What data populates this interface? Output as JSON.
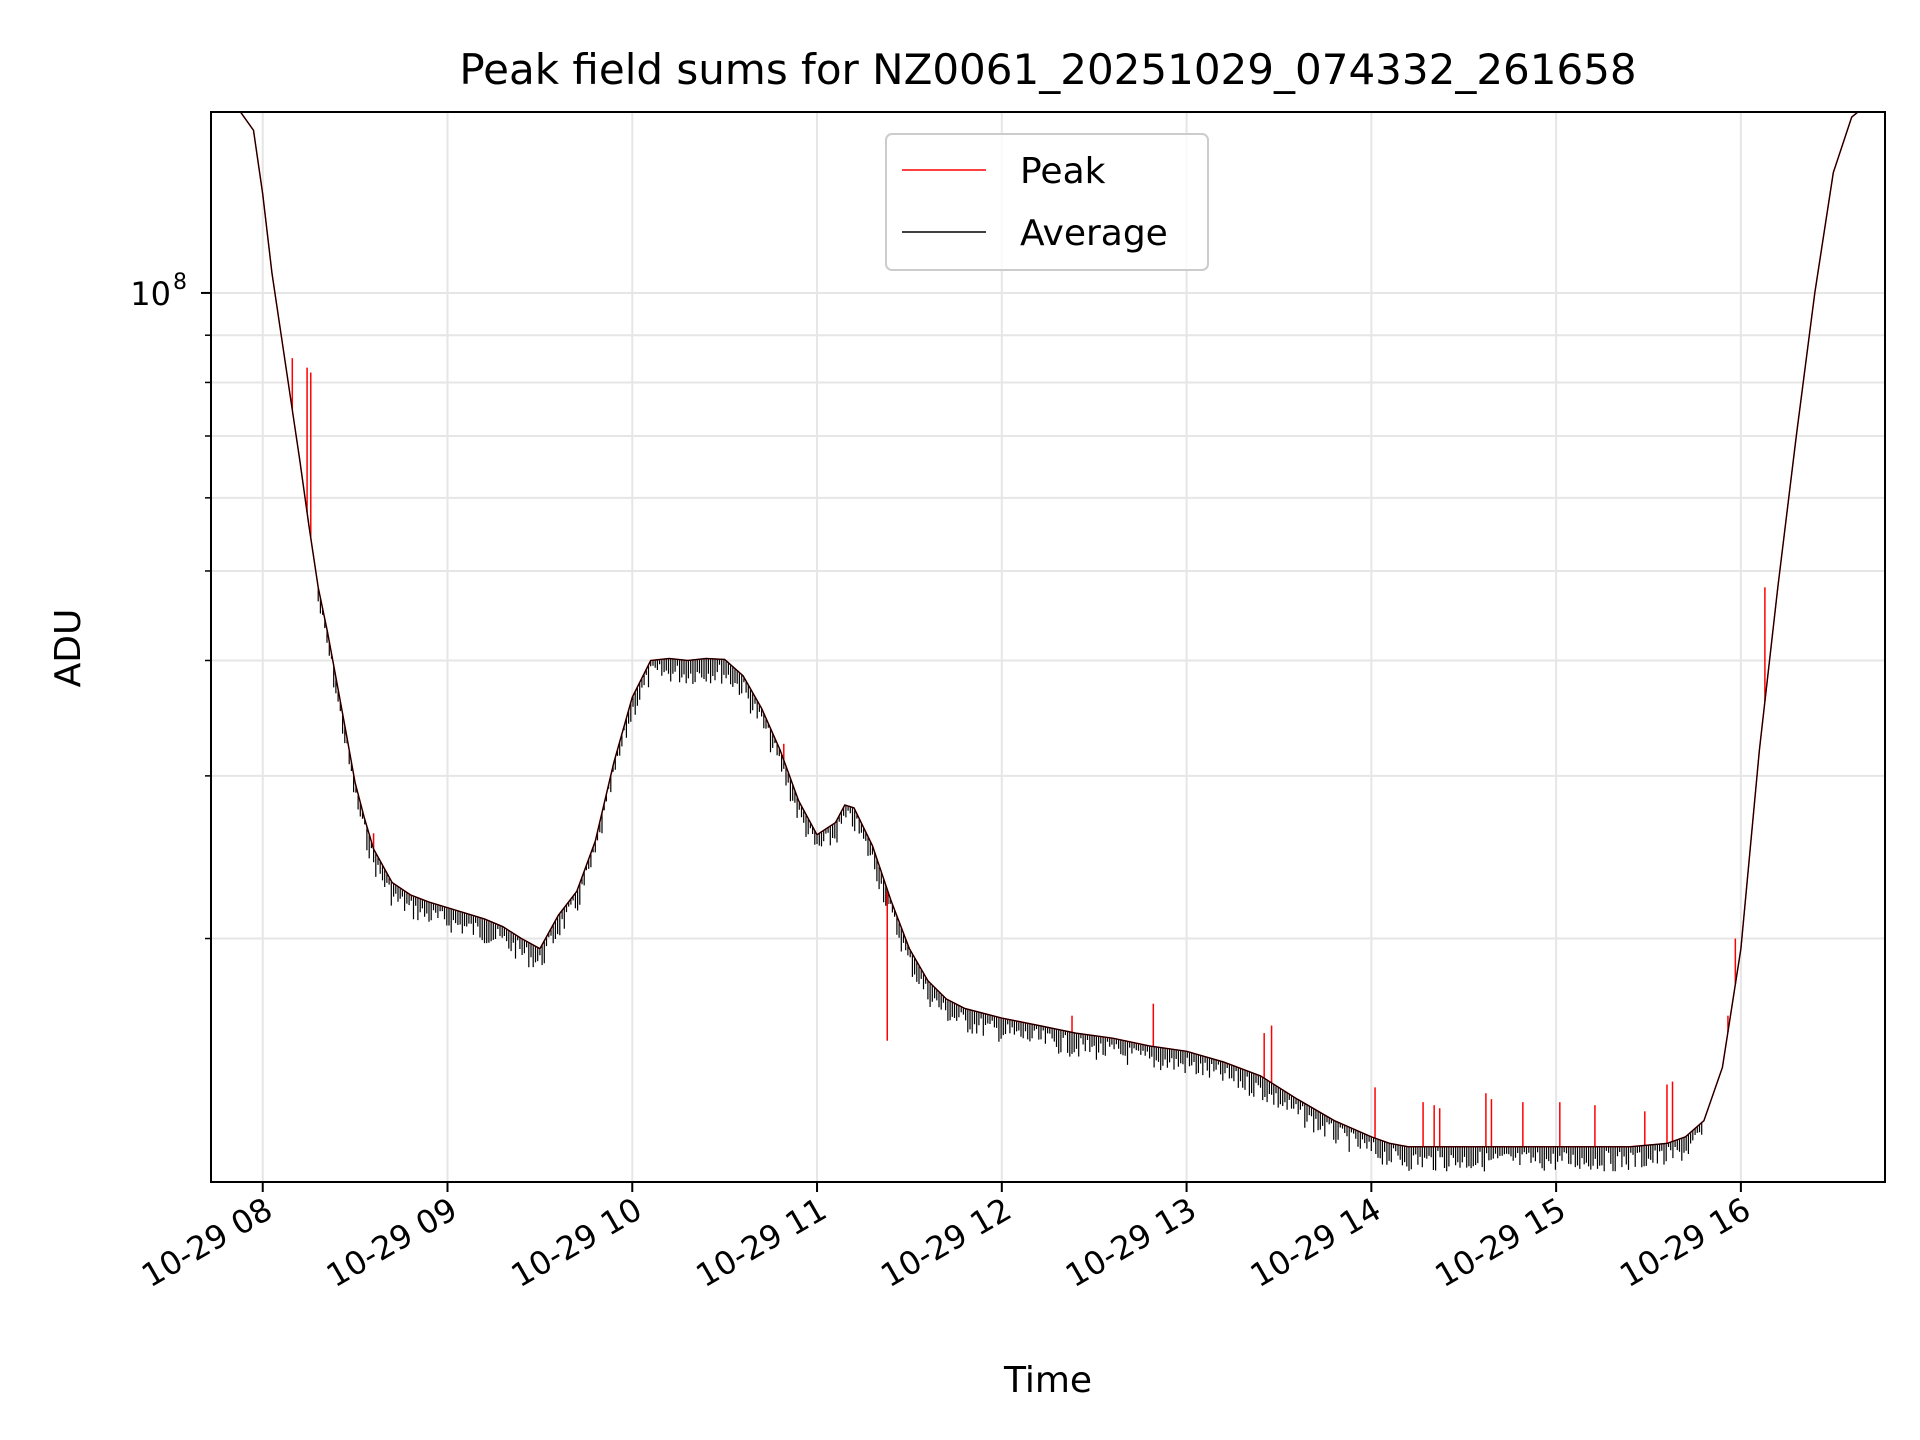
{
  "chart_data": {
    "type": "line",
    "title": "Peak field sums for NZ0061_20251029_074332_261658",
    "xlabel": "Time",
    "ylabel": "ADU",
    "yscale": "log",
    "ylim": [
      10900000,
      157000000
    ],
    "xlim": [
      7.72,
      16.78
    ],
    "grid": true,
    "legend_position": "top-center",
    "x_ticks": [
      {
        "value": 8,
        "label": "10-29 08"
      },
      {
        "value": 9,
        "label": "10-29 09"
      },
      {
        "value": 10,
        "label": "10-29 10"
      },
      {
        "value": 11,
        "label": "10-29 11"
      },
      {
        "value": 12,
        "label": "10-29 12"
      },
      {
        "value": 13,
        "label": "10-29 13"
      },
      {
        "value": 14,
        "label": "10-29 14"
      },
      {
        "value": 15,
        "label": "10-29 15"
      },
      {
        "value": 16,
        "label": "10-29 16"
      }
    ],
    "y_major_tick": {
      "value": 100000000,
      "base": "10",
      "exponent": "8"
    },
    "y_minor_ticks": [
      20000000,
      30000000,
      40000000,
      50000000,
      60000000,
      70000000,
      80000000,
      90000000
    ],
    "series": [
      {
        "name": "Peak",
        "color": "#ff0000",
        "x": [
          7.87,
          7.95,
          8.0,
          8.05,
          8.1,
          8.15,
          8.2,
          8.25,
          8.3,
          8.35,
          8.4,
          8.45,
          8.5,
          8.55,
          8.6,
          8.7,
          8.8,
          8.9,
          9.0,
          9.1,
          9.2,
          9.3,
          9.4,
          9.5,
          9.56,
          9.6,
          9.7,
          9.8,
          9.9,
          10.0,
          10.1,
          10.2,
          10.3,
          10.4,
          10.5,
          10.6,
          10.7,
          10.8,
          10.9,
          11.0,
          11.1,
          11.15,
          11.2,
          11.3,
          11.4,
          11.5,
          11.6,
          11.7,
          11.8,
          12.0,
          12.2,
          12.4,
          12.6,
          12.8,
          13.0,
          13.2,
          13.4,
          13.6,
          13.8,
          14.0,
          14.1,
          14.2,
          14.4,
          14.6,
          14.8,
          15.0,
          15.2,
          15.4,
          15.6,
          15.7,
          15.8,
          15.9,
          16.0,
          16.1,
          16.2,
          16.3,
          16.4,
          16.5,
          16.6,
          16.65
        ],
        "values": [
          158000000,
          150000000,
          128000000,
          105000000,
          90000000,
          77000000,
          66000000,
          56000000,
          48000000,
          43000000,
          38000000,
          33500000,
          29500000,
          27000000,
          25000000,
          23000000,
          22300000,
          21900000,
          21600000,
          21300000,
          21000000,
          20600000,
          20000000,
          19500000,
          20500000,
          21200000,
          22500000,
          25500000,
          31000000,
          36500000,
          40000000,
          40200000,
          40000000,
          40200000,
          40100000,
          38500000,
          35500000,
          32000000,
          28200000,
          25900000,
          26700000,
          27900000,
          27700000,
          25200000,
          22000000,
          19500000,
          18000000,
          17200000,
          16800000,
          16400000,
          16100000,
          15800000,
          15600000,
          15300000,
          15100000,
          14700000,
          14200000,
          13400000,
          12700000,
          12200000,
          12000000,
          11900000,
          11900000,
          11900000,
          11900000,
          11900000,
          11900000,
          11900000,
          12000000,
          12200000,
          12700000,
          14500000,
          19500000,
          32000000,
          48000000,
          70000000,
          100000000,
          135000000,
          155000000,
          158000000
        ],
        "spikes": [
          {
            "x": 8.16,
            "value": 85000000
          },
          {
            "x": 8.24,
            "value": 83000000
          },
          {
            "x": 8.26,
            "value": 82000000
          },
          {
            "x": 8.6,
            "value": 26000000
          },
          {
            "x": 10.82,
            "value": 32500000
          },
          {
            "x": 11.38,
            "value": 15500000
          },
          {
            "x": 12.38,
            "value": 16500000
          },
          {
            "x": 12.82,
            "value": 17000000
          },
          {
            "x": 13.42,
            "value": 15800000
          },
          {
            "x": 13.46,
            "value": 16100000
          },
          {
            "x": 14.02,
            "value": 13800000
          },
          {
            "x": 14.28,
            "value": 13300000
          },
          {
            "x": 14.34,
            "value": 13200000
          },
          {
            "x": 14.37,
            "value": 13100000
          },
          {
            "x": 14.62,
            "value": 13600000
          },
          {
            "x": 14.65,
            "value": 13400000
          },
          {
            "x": 14.82,
            "value": 13300000
          },
          {
            "x": 15.02,
            "value": 13300000
          },
          {
            "x": 15.21,
            "value": 13200000
          },
          {
            "x": 15.48,
            "value": 13000000
          },
          {
            "x": 15.6,
            "value": 13900000
          },
          {
            "x": 15.63,
            "value": 14000000
          },
          {
            "x": 15.93,
            "value": 16500000
          },
          {
            "x": 15.97,
            "value": 20000000
          },
          {
            "x": 16.13,
            "value": 48000000
          }
        ]
      },
      {
        "name": "Average",
        "color": "#000000",
        "x": [
          7.87,
          7.95,
          8.0,
          8.05,
          8.1,
          8.15,
          8.2,
          8.25,
          8.3,
          8.35,
          8.4,
          8.45,
          8.5,
          8.55,
          8.6,
          8.7,
          8.8,
          8.9,
          9.0,
          9.1,
          9.2,
          9.3,
          9.4,
          9.5,
          9.56,
          9.6,
          9.7,
          9.8,
          9.9,
          10.0,
          10.1,
          10.2,
          10.3,
          10.4,
          10.5,
          10.6,
          10.7,
          10.8,
          10.9,
          11.0,
          11.1,
          11.15,
          11.2,
          11.3,
          11.4,
          11.5,
          11.6,
          11.7,
          11.8,
          12.0,
          12.2,
          12.4,
          12.6,
          12.8,
          13.0,
          13.2,
          13.4,
          13.6,
          13.8,
          14.0,
          14.1,
          14.2,
          14.4,
          14.6,
          14.8,
          15.0,
          15.2,
          15.4,
          15.6,
          15.7,
          15.8,
          15.9,
          16.0,
          16.1,
          16.2,
          16.3,
          16.4,
          16.5,
          16.6,
          16.65
        ],
        "values": [
          158000000,
          150000000,
          128000000,
          105000000,
          90000000,
          77000000,
          66000000,
          56000000,
          48000000,
          43000000,
          38000000,
          33500000,
          29500000,
          27000000,
          25000000,
          23000000,
          22300000,
          21900000,
          21600000,
          21300000,
          21000000,
          20600000,
          20000000,
          19500000,
          20500000,
          21200000,
          22500000,
          25500000,
          31000000,
          36500000,
          40000000,
          40200000,
          40000000,
          40200000,
          40100000,
          38500000,
          35500000,
          32000000,
          28200000,
          25900000,
          26700000,
          27900000,
          27700000,
          25200000,
          22000000,
          19500000,
          18000000,
          17200000,
          16800000,
          16400000,
          16100000,
          15800000,
          15600000,
          15300000,
          15100000,
          14700000,
          14200000,
          13400000,
          12700000,
          12200000,
          12000000,
          11900000,
          11900000,
          11900000,
          11900000,
          11900000,
          11900000,
          11900000,
          12000000,
          12200000,
          12700000,
          14500000,
          19500000,
          32000000,
          48000000,
          70000000,
          100000000,
          135000000,
          155000000,
          158000000
        ]
      }
    ]
  }
}
